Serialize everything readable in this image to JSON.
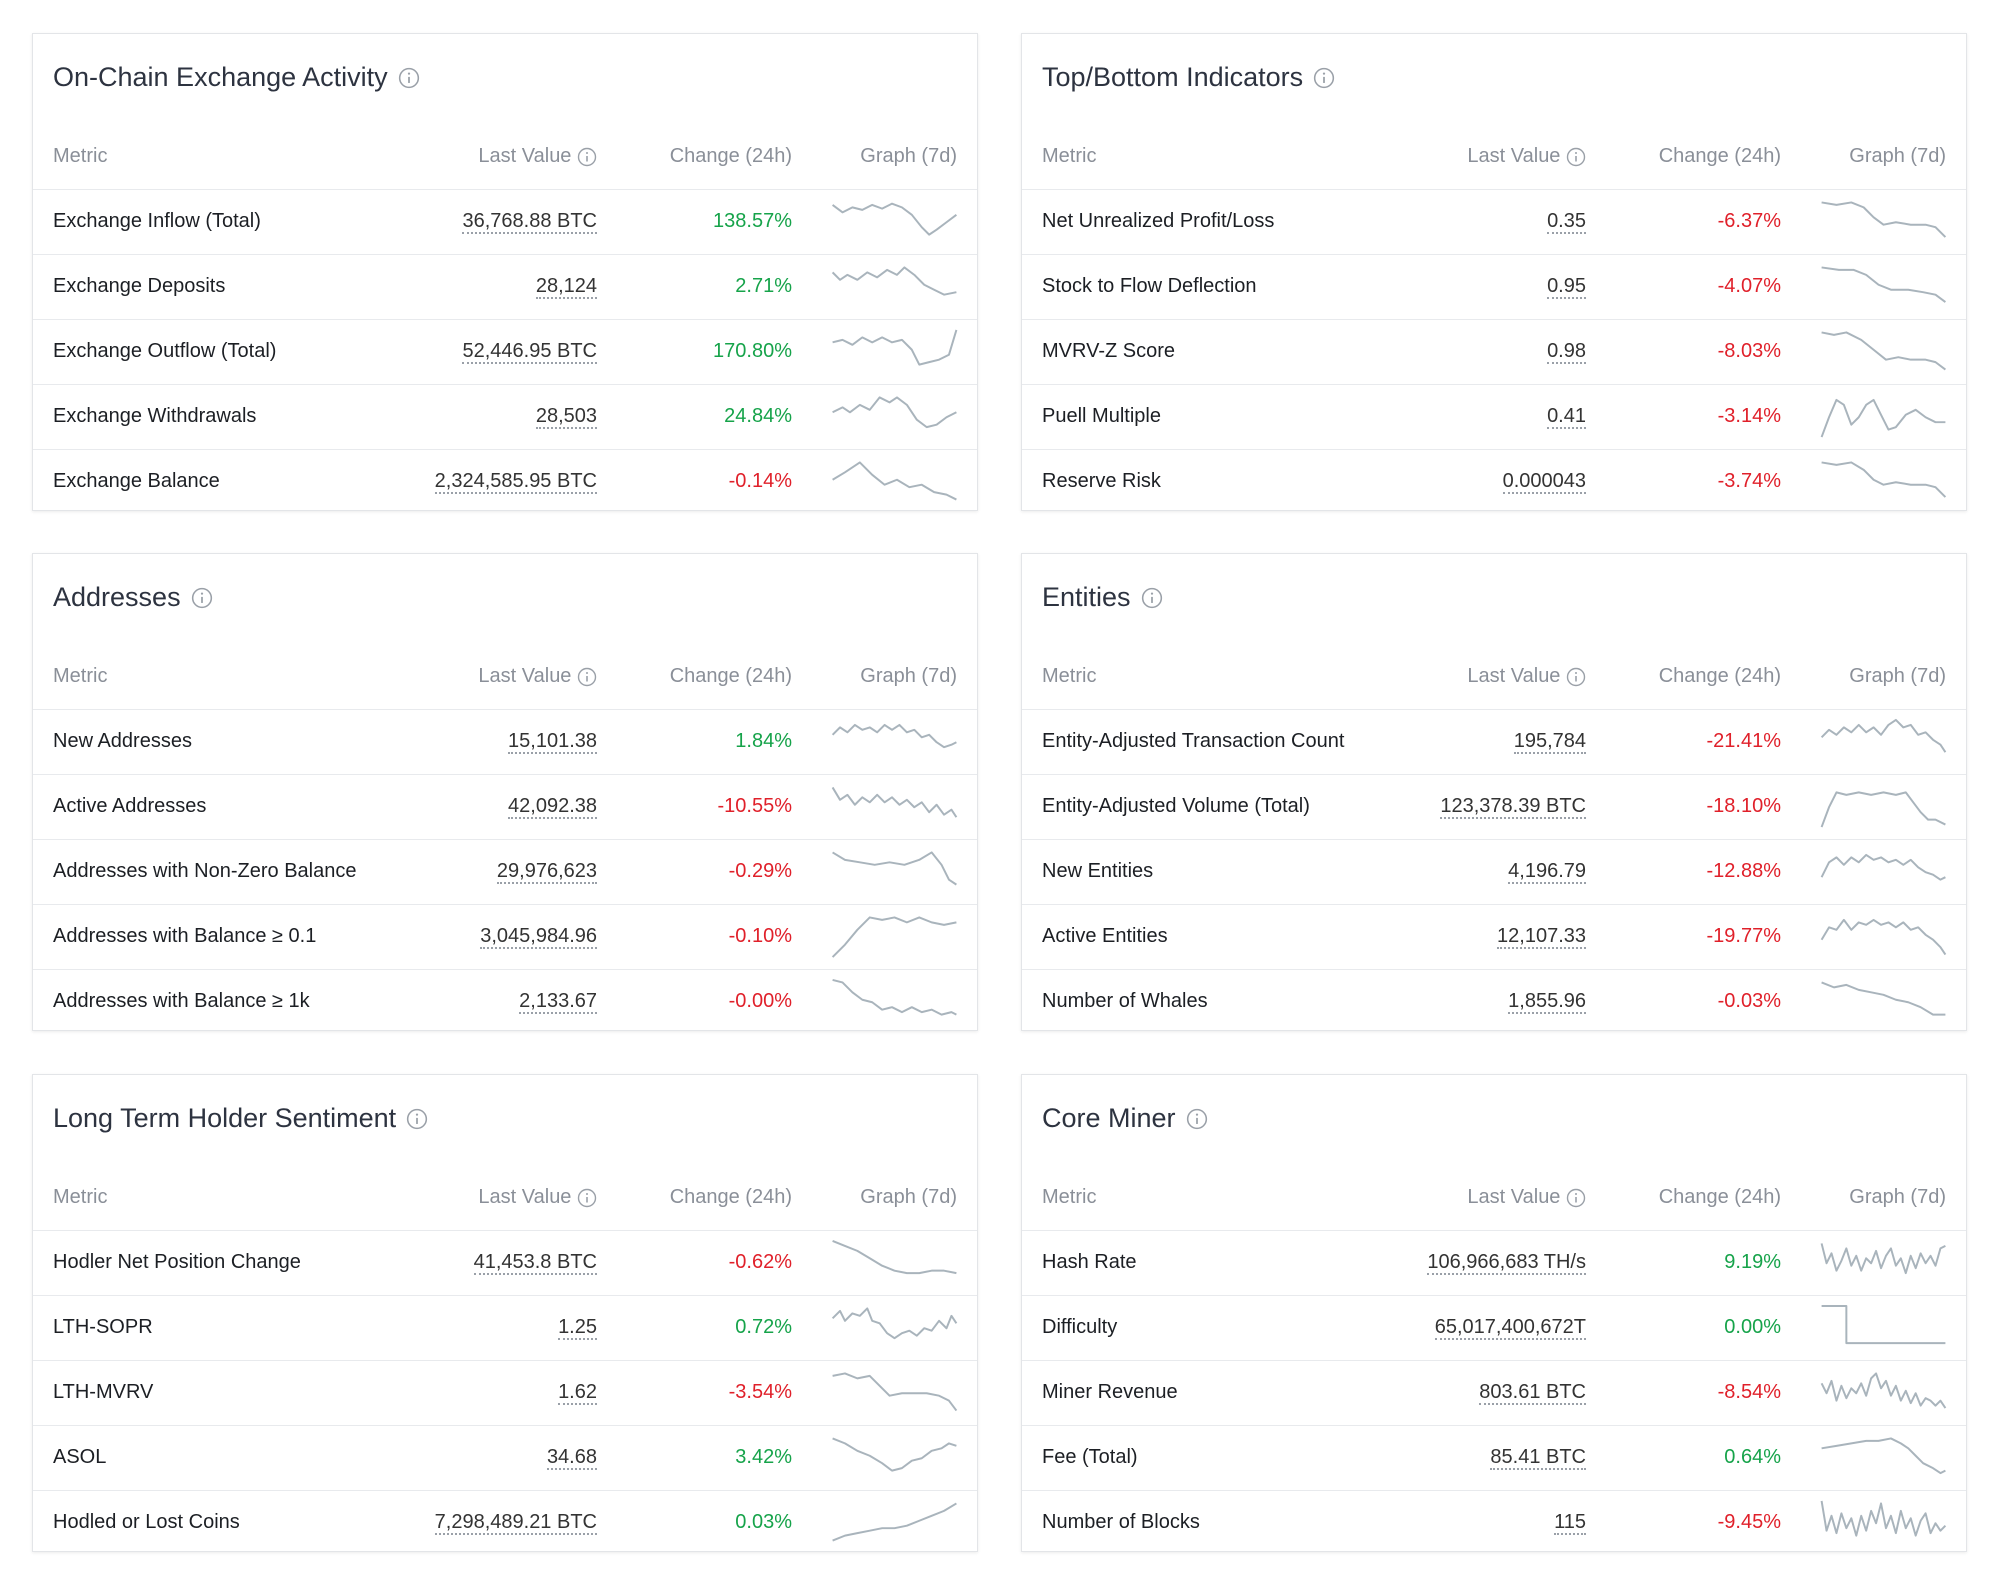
{
  "panels": [
    {
      "title": "On-Chain Exchange Activity",
      "columns": [
        "Metric",
        "Last Value",
        "Change (24h)",
        "Graph (7d)"
      ],
      "rows": [
        {
          "metric": "Exchange Inflow (Total)",
          "value": "36,768.88 BTC",
          "change": "138.57%"
        },
        {
          "metric": "Exchange Deposits",
          "value": "28,124",
          "change": "2.71%"
        },
        {
          "metric": "Exchange Outflow (Total)",
          "value": "52,446.95 BTC",
          "change": "170.80%"
        },
        {
          "metric": "Exchange Withdrawals",
          "value": "28,503",
          "change": "24.84%"
        },
        {
          "metric": "Exchange Balance",
          "value": "2,324,585.95 BTC",
          "change": "-0.14%"
        }
      ]
    },
    {
      "title": "Top/Bottom Indicators",
      "columns": [
        "Metric",
        "Last Value",
        "Change (24h)",
        "Graph (7d)"
      ],
      "rows": [
        {
          "metric": "Net Unrealized Profit/Loss",
          "value": "0.35",
          "change": "-6.37%"
        },
        {
          "metric": "Stock to Flow Deflection",
          "value": "0.95",
          "change": "-4.07%"
        },
        {
          "metric": "MVRV-Z Score",
          "value": "0.98",
          "change": "-8.03%"
        },
        {
          "metric": "Puell Multiple",
          "value": "0.41",
          "change": "-3.14%"
        },
        {
          "metric": "Reserve Risk",
          "value": "0.000043",
          "change": "-3.74%"
        }
      ]
    },
    {
      "title": "Addresses",
      "columns": [
        "Metric",
        "Last Value",
        "Change (24h)",
        "Graph (7d)"
      ],
      "rows": [
        {
          "metric": "New Addresses",
          "value": "15,101.38",
          "change": "1.84%"
        },
        {
          "metric": "Active Addresses",
          "value": "42,092.38",
          "change": "-10.55%"
        },
        {
          "metric": "Addresses with Non-Zero Balance",
          "value": "29,976,623",
          "change": "-0.29%"
        },
        {
          "metric": "Addresses with Balance ≥ 0.1",
          "value": "3,045,984.96",
          "change": "-0.10%"
        },
        {
          "metric": "Addresses with Balance ≥ 1k",
          "value": "2,133.67",
          "change": "-0.00%"
        }
      ]
    },
    {
      "title": "Entities",
      "columns": [
        "Metric",
        "Last Value",
        "Change (24h)",
        "Graph (7d)"
      ],
      "rows": [
        {
          "metric": "Entity-Adjusted Transaction Count",
          "value": "195,784",
          "change": "-21.41%"
        },
        {
          "metric": "Entity-Adjusted Volume (Total)",
          "value": "123,378.39 BTC",
          "change": "-18.10%"
        },
        {
          "metric": "New Entities",
          "value": "4,196.79",
          "change": "-12.88%"
        },
        {
          "metric": "Active Entities",
          "value": "12,107.33",
          "change": "-19.77%"
        },
        {
          "metric": "Number of Whales",
          "value": "1,855.96",
          "change": "-0.03%"
        }
      ]
    },
    {
      "title": "Long Term Holder Sentiment",
      "columns": [
        "Metric",
        "Last Value",
        "Change (24h)",
        "Graph (7d)"
      ],
      "rows": [
        {
          "metric": "Hodler Net Position Change",
          "value": "41,453.8 BTC",
          "change": "-0.62%"
        },
        {
          "metric": "LTH-SOPR",
          "value": "1.25",
          "change": "0.72%"
        },
        {
          "metric": "LTH-MVRV",
          "value": "1.62",
          "change": "-3.54%"
        },
        {
          "metric": "ASOL",
          "value": "34.68",
          "change": "3.42%"
        },
        {
          "metric": "Hodled or Lost Coins",
          "value": "7,298,489.21 BTC",
          "change": "0.03%"
        }
      ]
    },
    {
      "title": "Core Miner",
      "columns": [
        "Metric",
        "Last Value",
        "Change (24h)",
        "Graph (7d)"
      ],
      "rows": [
        {
          "metric": "Hash Rate",
          "value": "106,966,683 TH/s",
          "change": "9.19%"
        },
        {
          "metric": "Difficulty",
          "value": "65,017,400,672T",
          "change": "0.00%"
        },
        {
          "metric": "Miner Revenue",
          "value": "803.61 BTC",
          "change": "-8.54%"
        },
        {
          "metric": "Fee (Total)",
          "value": "85.41 BTC",
          "change": "0.64%"
        },
        {
          "metric": "Number of Blocks",
          "value": "115",
          "change": "-9.45%"
        }
      ]
    }
  ]
}
